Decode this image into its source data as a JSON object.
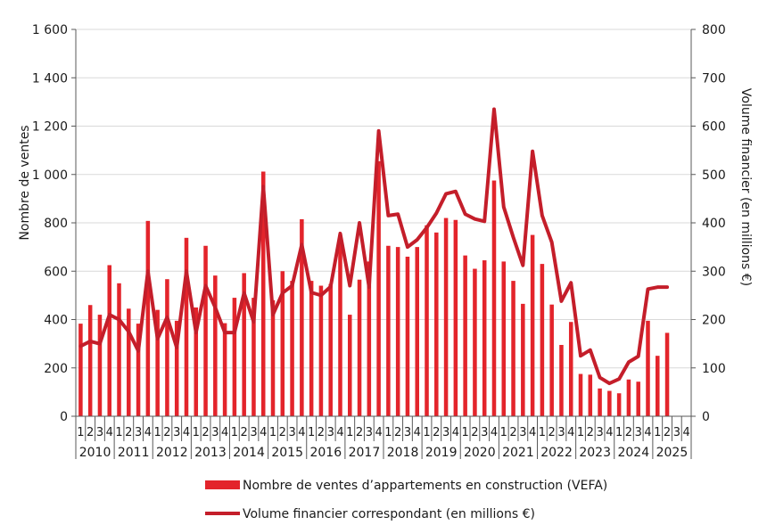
{
  "chart_data": {
    "type": "bar",
    "x_quarter_labels": [
      "1",
      "2",
      "3",
      "4"
    ],
    "years": [
      "2010",
      "2011",
      "2012",
      "2013",
      "2014",
      "2015",
      "2016",
      "2017",
      "2018",
      "2019",
      "2020",
      "2021",
      "2022",
      "2023",
      "2024",
      "2025"
    ],
    "ylabel_left": "Nombre de ventes",
    "ylabel_right": "Volume financier (en millions €)",
    "ylim_left": [
      0,
      1600
    ],
    "ylim_right": [
      0,
      800
    ],
    "yticks_left": [
      "0",
      "200",
      "400",
      "600",
      "800",
      "1 000",
      "1 200",
      "1 400",
      "1 600"
    ],
    "yticks_right": [
      "0",
      "100",
      "200",
      "300",
      "400",
      "500",
      "600",
      "700",
      "800"
    ],
    "legend_position": "bottom",
    "grid": "horizontal",
    "series": [
      {
        "name": "Nombre de ventes d’appartements en construction (VEFA)",
        "type": "bar",
        "axis": "left",
        "color": "#e3242b",
        "values": [
          383,
          460,
          420,
          625,
          550,
          445,
          383,
          808,
          440,
          567,
          395,
          738,
          450,
          705,
          582,
          385,
          490,
          592,
          490,
          1012,
          480,
          600,
          560,
          815,
          560,
          540,
          547,
          750,
          420,
          565,
          640,
          1055,
          705,
          700,
          660,
          700,
          790,
          760,
          820,
          812,
          665,
          610,
          645,
          975,
          640,
          560,
          465,
          750,
          630,
          462,
          295,
          390,
          175,
          172,
          115,
          105,
          95,
          152,
          143,
          395,
          250,
          345
        ]
      },
      {
        "name": "Volume financier correspondant (en millions €)",
        "type": "line",
        "axis": "right",
        "color": "#c41e2a",
        "values": [
          145,
          155,
          150,
          210,
          200,
          175,
          135,
          300,
          160,
          205,
          142,
          300,
          173,
          270,
          225,
          173,
          173,
          255,
          195,
          475,
          210,
          255,
          270,
          355,
          256,
          250,
          268,
          378,
          270,
          400,
          267,
          590,
          415,
          418,
          350,
          365,
          390,
          420,
          460,
          465,
          418,
          408,
          403,
          635,
          433,
          370,
          312,
          548,
          415,
          360,
          238,
          276,
          125,
          137,
          80,
          68,
          77,
          112,
          124,
          263,
          267,
          267
        ]
      }
    ]
  }
}
